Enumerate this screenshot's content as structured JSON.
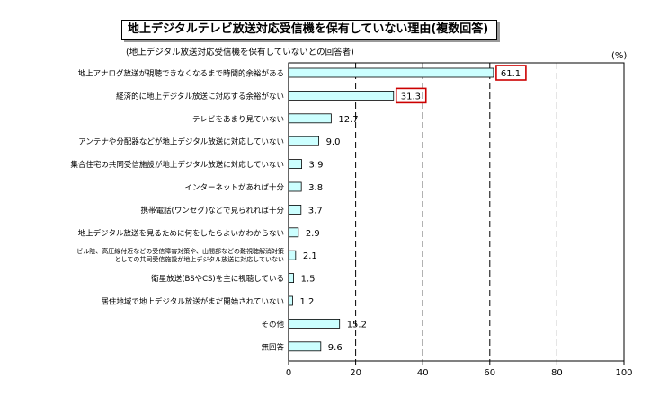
{
  "chart_data": {
    "type": "bar",
    "orientation": "horizontal",
    "title": "地上デジタルテレビ放送対応受信機を保有していない理由(複数回答)",
    "subtitle": "(地上デジタル放送対応受信機を保有していないとの回答者)",
    "unit_label": "(%)",
    "categories": [
      "地上アナログ放送が視聴できなくなるまで時間的余裕がある",
      "経済的に地上デジタル放送に対応する余裕がない",
      "テレビをあまり見ていない",
      "アンテナや分配器などが地上デジタル放送に対応していない",
      "集合住宅の共同受信施設が地上デジタル放送に対応していない",
      "インターネットがあれば十分",
      "携帯電話(ワンセグ)などで見られれば十分",
      "地上デジタル放送を見るために何をしたらよいかわからない",
      "ビル陰、高圧線付近などの受信障害対策や、山間部などの難視聴解消対策としての共同受信施設が地上デジタル放送に対応していない",
      "衛星放送(BSやCS)を主に視聴している",
      "居住地域で地上デジタル放送がまだ開始されていない",
      "その他",
      "無回答"
    ],
    "values": [
      61.1,
      31.3,
      12.7,
      9.0,
      3.9,
      3.8,
      3.7,
      2.9,
      2.1,
      1.5,
      1.2,
      15.2,
      9.6
    ],
    "value_labels": [
      "61.1",
      "31.3",
      "12.7",
      "9.0",
      "3.9",
      "3.8",
      "3.7",
      "2.9",
      "2.1",
      "1.5",
      "1.2",
      "15.2",
      "9.6"
    ],
    "highlighted": [
      0,
      1
    ],
    "xlim": [
      0,
      100
    ],
    "xticks": [
      0,
      20,
      40,
      60,
      80,
      100
    ],
    "grid": "dashed vertical",
    "colors": {
      "bar_fill": "#ccffff",
      "bar_stroke": "#000000",
      "highlight_box": "#cc0000"
    }
  }
}
